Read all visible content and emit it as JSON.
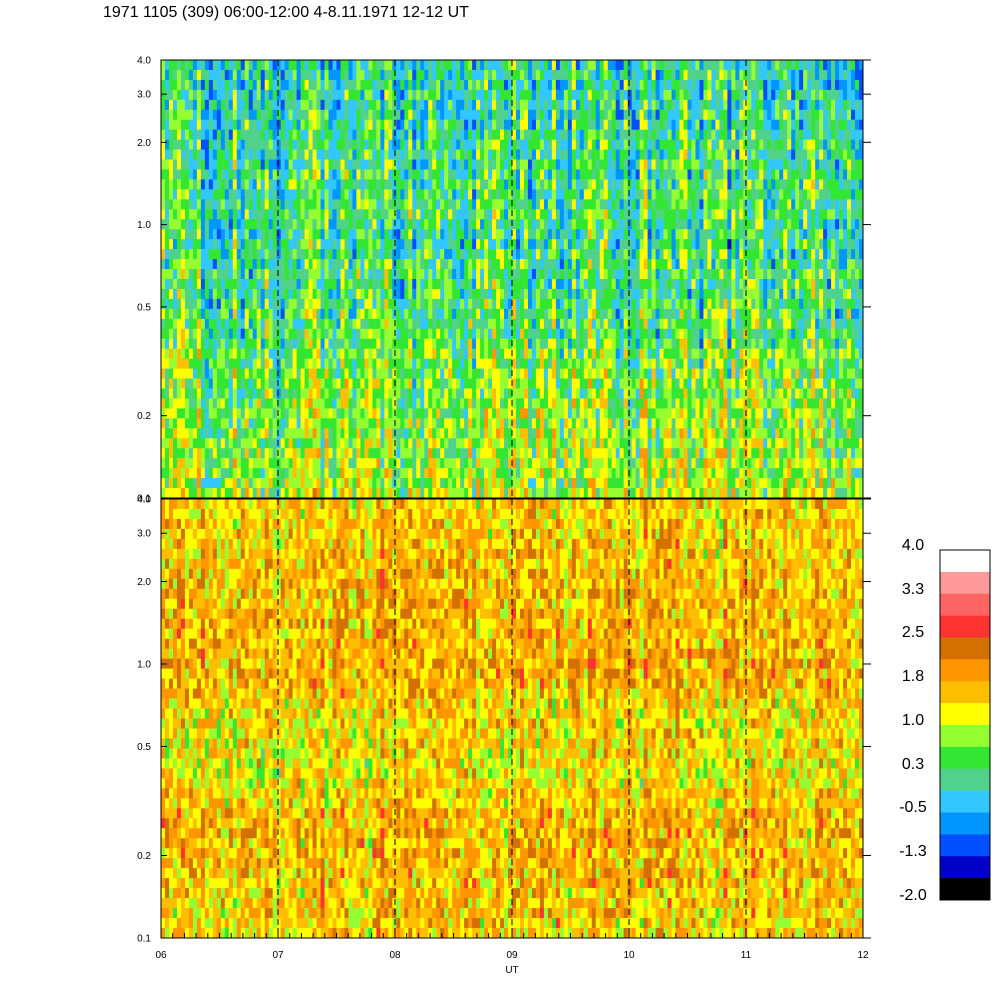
{
  "page": {
    "title": "1971 1105 (309) 06:00-12:00 4-8.11.1971  12-12 UT"
  },
  "chart_data": {
    "type": "heatmap",
    "xlabel": "UT",
    "x_ticks": [
      "06",
      "07",
      "08",
      "09",
      "10",
      "11",
      "12"
    ],
    "x_range": [
      6,
      12
    ],
    "y_scale": "log",
    "y_range": [
      0.1,
      4.0
    ],
    "panels": [
      {
        "name": "upper",
        "y_ticks": [
          "0.1",
          "0.2",
          "0.5",
          "1.0",
          "2.0",
          "3.0",
          "4.0"
        ],
        "y_tick_values": [
          0.1,
          0.2,
          0.5,
          1.0,
          2.0,
          3.0,
          4.0
        ],
        "dominant_level": 0.3
      },
      {
        "name": "lower",
        "y_ticks": [
          "0.1",
          "0.2",
          "0.5",
          "1.0",
          "2.0",
          "3.0",
          "4.0"
        ],
        "y_tick_values": [
          0.1,
          0.2,
          0.5,
          1.0,
          2.0,
          3.0,
          4.0
        ],
        "dominant_level": 1.4
      }
    ],
    "hour_markers": [
      7,
      8,
      9,
      10,
      11
    ],
    "colorbar": {
      "labels": [
        "4.0",
        "3.3",
        "2.5",
        "1.8",
        "1.0",
        "0.3",
        "-0.5",
        "-1.3",
        "-2.0"
      ],
      "colors": [
        "#ffffff",
        "#ff9a9a",
        "#ff6464",
        "#ff3232",
        "#d27000",
        "#ff9600",
        "#ffbe00",
        "#ffff00",
        "#96ff32",
        "#32e632",
        "#50d28c",
        "#32c8ff",
        "#0096ff",
        "#0050ff",
        "#0000c8",
        "#000000"
      ]
    }
  }
}
